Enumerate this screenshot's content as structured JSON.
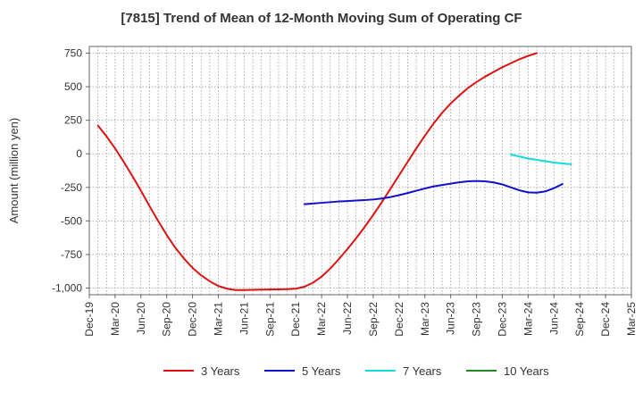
{
  "chart_data": {
    "type": "line",
    "title": "[7815]  Trend of Mean of 12-Month Moving Sum of Operating CF",
    "xlabel": "",
    "ylabel": "Amount (million yen)",
    "ylim": [
      -1050,
      800
    ],
    "yticks": [
      750,
      500,
      250,
      0,
      -250,
      -500,
      -750,
      -1000
    ],
    "ytick_labels": [
      "750",
      "500",
      "250",
      "0",
      "-250",
      "-500",
      "-750",
      "-1,000"
    ],
    "xticks": [
      "Dec-19",
      "Mar-20",
      "Jun-20",
      "Sep-20",
      "Dec-20",
      "Mar-21",
      "Jun-21",
      "Sep-21",
      "Dec-21",
      "Mar-22",
      "Jun-22",
      "Sep-22",
      "Dec-22",
      "Mar-23",
      "Jun-23",
      "Sep-23",
      "Dec-23",
      "Mar-24",
      "Jun-24",
      "Sep-24",
      "Dec-24",
      "Mar-25"
    ],
    "grid": true,
    "legend_position": "bottom",
    "series": [
      {
        "name": "3 Years",
        "color": "#dd1111",
        "x_start_index": 1,
        "values": [
          210,
          130,
          40,
          -60,
          -165,
          -275,
          -390,
          -500,
          -605,
          -700,
          -780,
          -850,
          -905,
          -950,
          -985,
          -1005,
          -1015,
          -1015,
          -1013,
          -1012,
          -1011,
          -1010,
          -1008,
          -1005,
          -990,
          -960,
          -915,
          -855,
          -785,
          -710,
          -630,
          -545,
          -455,
          -360,
          -260,
          -160,
          -60,
          40,
          135,
          225,
          305,
          375,
          435,
          490,
          535,
          575,
          610,
          645,
          675,
          705,
          730,
          750
        ]
      },
      {
        "name": "5 Years",
        "color": "#1111cc",
        "x_start_index": 25,
        "values": [
          -375,
          -370,
          -365,
          -360,
          -355,
          -352,
          -348,
          -345,
          -340,
          -333,
          -322,
          -308,
          -292,
          -275,
          -258,
          -243,
          -232,
          -222,
          -212,
          -205,
          -202,
          -205,
          -213,
          -228,
          -250,
          -272,
          -287,
          -290,
          -280,
          -256,
          -225
        ]
      },
      {
        "name": "7 Years",
        "color": "#11dddd",
        "x_start_index": 49,
        "values": [
          -5,
          -20,
          -35,
          -45,
          -55,
          -65,
          -72,
          -78
        ]
      },
      {
        "name": "10 Years",
        "color": "#228822",
        "x_start_index": 0,
        "values": []
      }
    ]
  }
}
